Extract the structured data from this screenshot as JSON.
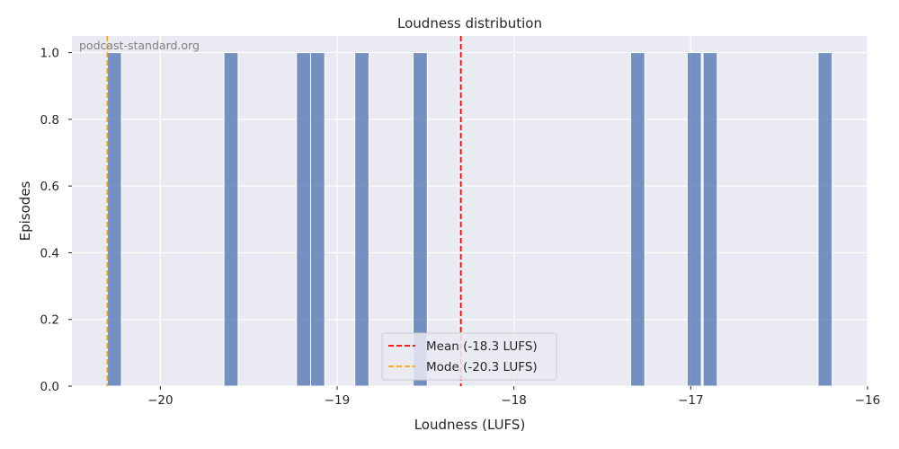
{
  "chart_data": {
    "type": "bar",
    "title": "Loudness distribution",
    "xlabel": "Loudness (LUFS)",
    "ylabel": "Episodes",
    "xlim": [
      -20.5,
      -16.0
    ],
    "ylim": [
      0,
      1.05
    ],
    "x_ticks": [
      -20,
      -19,
      -18,
      -17,
      -16
    ],
    "x_tick_labels": [
      "−20",
      "−19",
      "−18",
      "−17",
      "−16"
    ],
    "y_ticks": [
      0.0,
      0.2,
      0.4,
      0.6,
      0.8,
      1.0
    ],
    "y_tick_labels": [
      "0.0",
      "0.2",
      "0.4",
      "0.6",
      "0.8",
      "1.0"
    ],
    "bin_width": 0.08,
    "bars": [
      {
        "x": -20.26,
        "count": 1
      },
      {
        "x": -19.6,
        "count": 1
      },
      {
        "x": -19.19,
        "count": 1
      },
      {
        "x": -19.11,
        "count": 1
      },
      {
        "x": -18.86,
        "count": 1
      },
      {
        "x": -18.53,
        "count": 1
      },
      {
        "x": -17.3,
        "count": 1
      },
      {
        "x": -16.98,
        "count": 1
      },
      {
        "x": -16.89,
        "count": 1
      },
      {
        "x": -16.24,
        "count": 1
      }
    ],
    "bar_color": "#4c72b0",
    "lines": [
      {
        "label": "Mean (-18.3 LUFS)",
        "x": -18.3,
        "color": "#ff0000",
        "style": "dashed"
      },
      {
        "label": "Mode (-20.3 LUFS)",
        "x": -20.3,
        "color": "#ffa500",
        "style": "dashed"
      }
    ],
    "legend_position": "lower center",
    "grid": true,
    "background_color": "#eaeaf2",
    "watermark": "podcast-standard.org"
  }
}
